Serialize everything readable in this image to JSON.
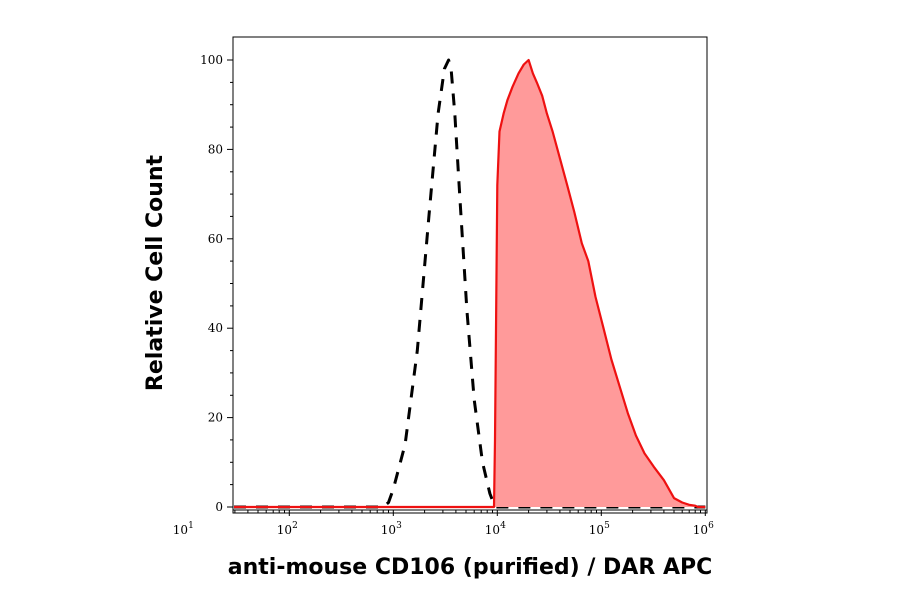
{
  "chart_data": {
    "type": "area",
    "xlabel": "anti-mouse CD106 (purified) / DAR APC",
    "ylabel": "Relative Cell Count",
    "x_scale": "log",
    "xlim": [
      6,
      1000000
    ],
    "ylim": [
      0,
      100
    ],
    "x_tick_labels": [
      {
        "value": 10,
        "base": "10",
        "exp": "1"
      },
      {
        "value": 100,
        "base": "10",
        "exp": "2"
      },
      {
        "value": 1000,
        "base": "10",
        "exp": "3"
      },
      {
        "value": 10000,
        "base": "10",
        "exp": "4"
      },
      {
        "value": 100000,
        "base": "10",
        "exp": "5"
      },
      {
        "value": 1000000,
        "base": "10",
        "exp": "6"
      }
    ],
    "y_tick_labels": [
      {
        "value": 0,
        "label": "0"
      },
      {
        "value": 20,
        "label": "20"
      },
      {
        "value": 40,
        "label": "40"
      },
      {
        "value": 60,
        "label": "60"
      },
      {
        "value": 80,
        "label": "80"
      },
      {
        "value": 100,
        "label": "100"
      }
    ],
    "grid": false,
    "series": [
      {
        "style": "dashed-outline",
        "color": "#000000",
        "x": [
          6,
          800,
          900,
          1000,
          1300,
          1700,
          2200,
          2700,
          3100,
          3400,
          3600,
          3900,
          4400,
          5100,
          6000,
          7200,
          8500,
          9500,
          1000000
        ],
        "y": [
          0,
          0,
          1,
          4,
          14,
          35,
          65,
          88,
          98,
          100,
          98,
          88,
          68,
          44,
          24,
          10,
          3,
          0,
          0
        ]
      },
      {
        "style": "filled",
        "color": "#ee1111",
        "fill": "#ff9a9a",
        "x": [
          6,
          9300,
          9500,
          10000,
          10500,
          11500,
          12500,
          14000,
          16000,
          18000,
          20000,
          22000,
          24000,
          27000,
          30000,
          34000,
          40000,
          47000,
          55000,
          65000,
          75000,
          88000,
          105000,
          125000,
          150000,
          180000,
          215000,
          260000,
          320000,
          400000,
          500000,
          600000,
          700000,
          800000,
          850000,
          1000000
        ],
        "y": [
          0,
          0,
          15,
          72,
          84,
          88,
          91,
          94,
          97,
          99,
          100,
          97,
          95,
          92,
          88,
          84,
          78,
          72,
          66,
          59,
          55,
          47,
          40,
          33,
          27,
          21,
          16,
          12,
          9,
          6,
          2,
          1,
          0.5,
          0.3,
          0,
          0
        ]
      }
    ]
  }
}
